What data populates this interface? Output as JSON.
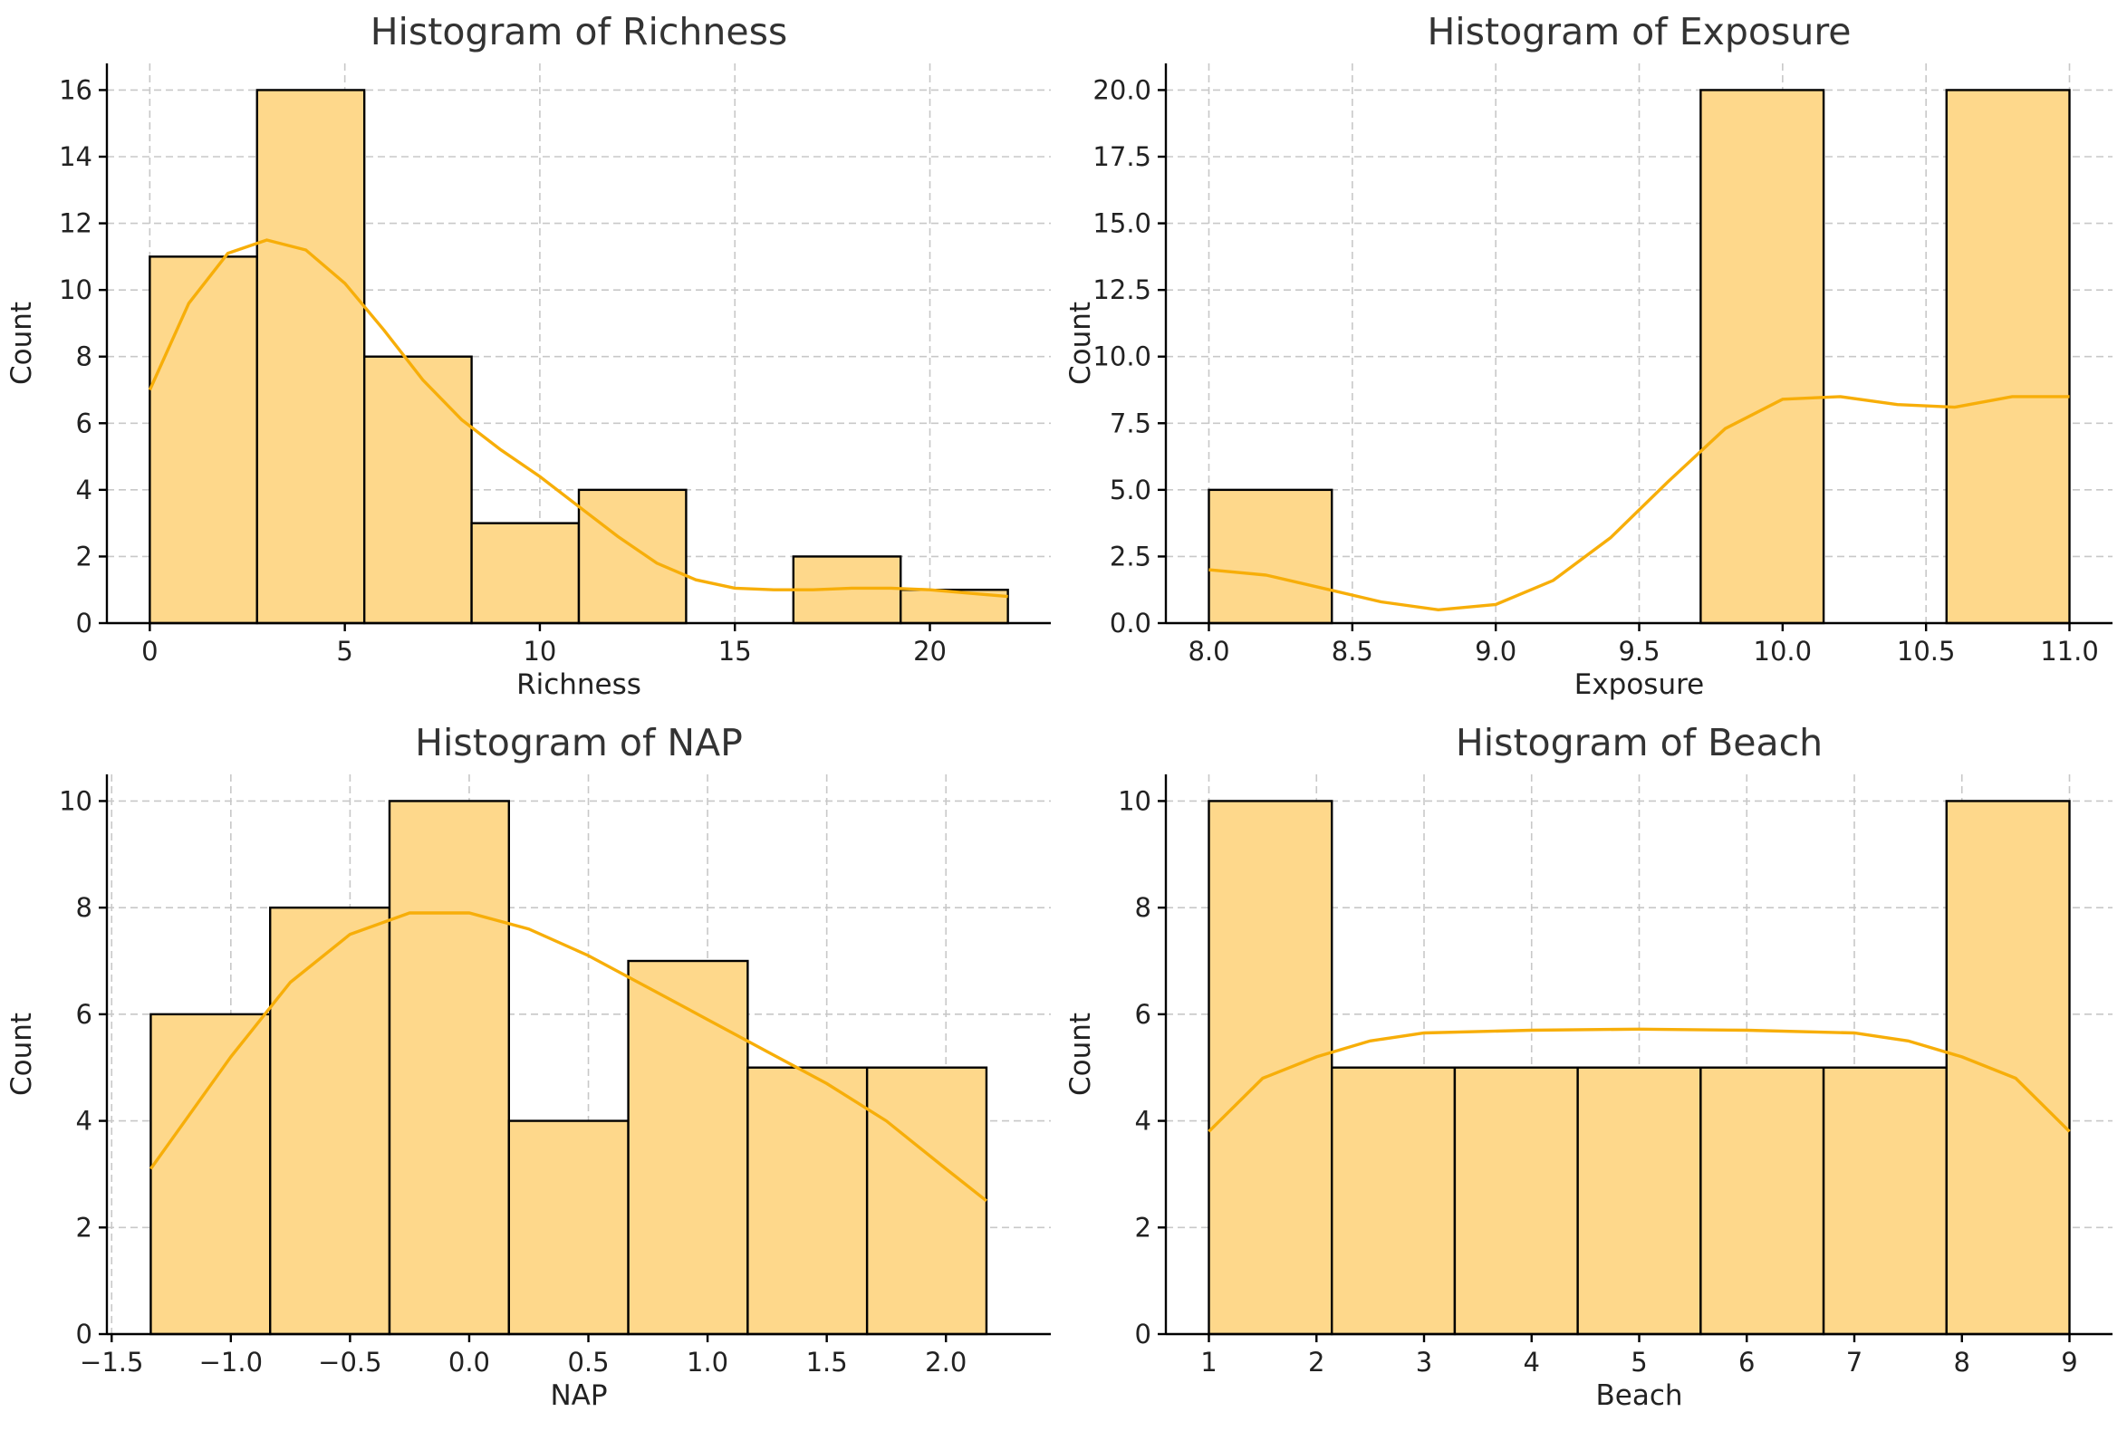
{
  "chart_data": [
    {
      "type": "bar",
      "title": "Histogram of Richness",
      "xlabel": "Richness",
      "ylabel": "Count",
      "xlim": [
        -1.1,
        23.1
      ],
      "ylim": [
        0,
        16.8
      ],
      "xticks": [
        0,
        5,
        10,
        15,
        20
      ],
      "xtick_labels": [
        "0",
        "5",
        "10",
        "15",
        "20"
      ],
      "yticks": [
        0,
        2,
        4,
        6,
        8,
        10,
        12,
        14,
        16
      ],
      "ytick_labels": [
        "0",
        "2",
        "4",
        "6",
        "8",
        "10",
        "12",
        "14",
        "16"
      ],
      "grid": true,
      "bin_edges": [
        0,
        2.75,
        5.5,
        8.25,
        11,
        13.75,
        16.5,
        19.25,
        22
      ],
      "counts": [
        11,
        16,
        8,
        3,
        4,
        0,
        2,
        1
      ],
      "kde": [
        [
          0,
          7.0
        ],
        [
          1,
          9.6
        ],
        [
          2,
          11.1
        ],
        [
          3,
          11.5
        ],
        [
          4,
          11.2
        ],
        [
          5,
          10.2
        ],
        [
          6,
          8.8
        ],
        [
          7,
          7.3
        ],
        [
          8,
          6.1
        ],
        [
          9,
          5.2
        ],
        [
          10,
          4.4
        ],
        [
          11,
          3.5
        ],
        [
          12,
          2.6
        ],
        [
          13,
          1.8
        ],
        [
          14,
          1.3
        ],
        [
          15,
          1.05
        ],
        [
          16,
          1.0
        ],
        [
          17,
          1.0
        ],
        [
          18,
          1.05
        ],
        [
          19,
          1.05
        ],
        [
          20,
          1.0
        ],
        [
          21,
          0.9
        ],
        [
          22,
          0.8
        ]
      ]
    },
    {
      "type": "bar",
      "title": "Histogram of Exposure",
      "xlabel": "Exposure",
      "ylabel": "Count",
      "xlim": [
        7.85,
        11.15
      ],
      "ylim": [
        0,
        21
      ],
      "xticks": [
        8.0,
        8.5,
        9.0,
        9.5,
        10.0,
        10.5,
        11.0
      ],
      "xtick_labels": [
        "8.0",
        "8.5",
        "9.0",
        "9.5",
        "10.0",
        "10.5",
        "11.0"
      ],
      "yticks": [
        0,
        2.5,
        5,
        7.5,
        10,
        12.5,
        15,
        17.5,
        20
      ],
      "ytick_labels": [
        "0.0",
        "2.5",
        "5.0",
        "7.5",
        "10.0",
        "12.5",
        "15.0",
        "17.5",
        "20.0"
      ],
      "grid": true,
      "bin_edges": [
        8.0,
        8.4286,
        8.8571,
        9.2857,
        9.7143,
        10.1429,
        10.5714,
        11.0
      ],
      "counts": [
        5,
        0,
        0,
        0,
        20,
        0,
        20
      ],
      "kde": [
        [
          8.0,
          2.0
        ],
        [
          8.2,
          1.8
        ],
        [
          8.4,
          1.3
        ],
        [
          8.6,
          0.8
        ],
        [
          8.8,
          0.5
        ],
        [
          9.0,
          0.7
        ],
        [
          9.2,
          1.6
        ],
        [
          9.4,
          3.2
        ],
        [
          9.6,
          5.3
        ],
        [
          9.8,
          7.3
        ],
        [
          10.0,
          8.4
        ],
        [
          10.2,
          8.5
        ],
        [
          10.4,
          8.2
        ],
        [
          10.6,
          8.1
        ],
        [
          10.8,
          8.5
        ],
        [
          11.0,
          8.5
        ]
      ]
    },
    {
      "type": "bar",
      "title": "Histogram of NAP",
      "xlabel": "NAP",
      "ylabel": "Count",
      "xlim": [
        -1.52,
        2.44
      ],
      "ylim": [
        0,
        10.5
      ],
      "xticks": [
        -1.5,
        -1.0,
        -0.5,
        0.0,
        0.5,
        1.0,
        1.5,
        2.0
      ],
      "xtick_labels": [
        "−1.5",
        "−1.0",
        "−0.5",
        "0.0",
        "0.5",
        "1.0",
        "1.5",
        "2.0"
      ],
      "yticks": [
        0,
        2,
        4,
        6,
        8,
        10
      ],
      "ytick_labels": [
        "0",
        "2",
        "4",
        "6",
        "8",
        "10"
      ],
      "grid": true,
      "bin_edges": [
        -1.336,
        -0.8351,
        -0.3343,
        0.1666,
        0.6674,
        1.1683,
        1.6691,
        2.17
      ],
      "counts": [
        6,
        8,
        10,
        4,
        7,
        5,
        5
      ],
      "kde": [
        [
          -1.336,
          3.1
        ],
        [
          -1.0,
          5.2
        ],
        [
          -0.75,
          6.6
        ],
        [
          -0.5,
          7.5
        ],
        [
          -0.25,
          7.9
        ],
        [
          0.0,
          7.9
        ],
        [
          0.25,
          7.6
        ],
        [
          0.5,
          7.1
        ],
        [
          0.75,
          6.5
        ],
        [
          1.0,
          5.9
        ],
        [
          1.25,
          5.3
        ],
        [
          1.5,
          4.7
        ],
        [
          1.75,
          4.0
        ],
        [
          2.0,
          3.1
        ],
        [
          2.17,
          2.5
        ]
      ]
    },
    {
      "type": "bar",
      "title": "Histogram of Beach",
      "xlabel": "Beach",
      "ylabel": "Count",
      "xlim": [
        0.6,
        9.4
      ],
      "ylim": [
        0,
        10.5
      ],
      "xticks": [
        1,
        2,
        3,
        4,
        5,
        6,
        7,
        8,
        9
      ],
      "xtick_labels": [
        "1",
        "2",
        "3",
        "4",
        "5",
        "6",
        "7",
        "8",
        "9"
      ],
      "yticks": [
        0,
        2,
        4,
        6,
        8,
        10
      ],
      "ytick_labels": [
        "0",
        "2",
        "4",
        "6",
        "8",
        "10"
      ],
      "grid": true,
      "bin_edges": [
        1,
        2.1429,
        3.2857,
        4.4286,
        5.5714,
        6.7143,
        7.8571,
        9
      ],
      "counts": [
        10,
        5,
        5,
        5,
        5,
        5,
        10
      ],
      "kde": [
        [
          1.0,
          3.8
        ],
        [
          1.5,
          4.8
        ],
        [
          2.0,
          5.2
        ],
        [
          2.5,
          5.5
        ],
        [
          3.0,
          5.65
        ],
        [
          4.0,
          5.7
        ],
        [
          5.0,
          5.72
        ],
        [
          6.0,
          5.7
        ],
        [
          7.0,
          5.65
        ],
        [
          7.5,
          5.5
        ],
        [
          8.0,
          5.2
        ],
        [
          8.5,
          4.8
        ],
        [
          9.0,
          3.8
        ]
      ]
    }
  ]
}
